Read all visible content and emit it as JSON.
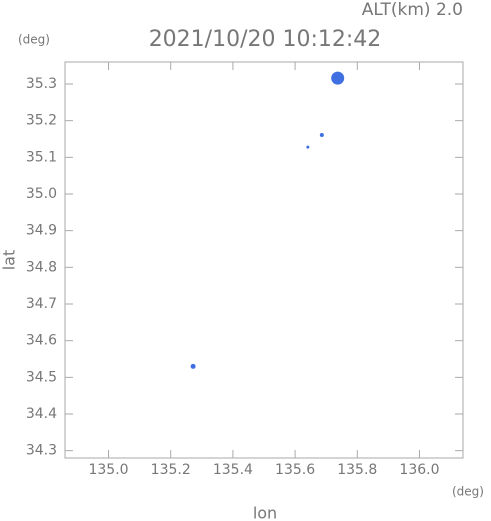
{
  "chart_data": {
    "type": "scatter",
    "title": "2021/10/20 10:12:42",
    "subtitle": "ALT(km) 2.0",
    "y_unit": "(deg)",
    "x_unit": "(deg)",
    "x_label": "lon",
    "y_label": "lat",
    "xlim": [
      134.86,
      136.14
    ],
    "ylim": [
      34.28,
      35.36
    ],
    "xticks": [
      {
        "value": 135,
        "label": "135.0"
      },
      135.2,
      135.4,
      135.6,
      135.8,
      {
        "value": 136,
        "label": "136.0"
      }
    ],
    "yticks": [
      34.3,
      34.4,
      34.5,
      34.6,
      34.7,
      34.8,
      34.9,
      {
        "value": 35,
        "label": "35.0"
      },
      35.1,
      35.2,
      35.3
    ],
    "series": [
      {
        "color": "#3f6fe0",
        "x": [
          135.737,
          135.686,
          135.641,
          135.272
        ],
        "values": [
          35.316,
          35.161,
          35.128,
          34.53
        ],
        "sizes": [
          12,
          3,
          2,
          4
        ]
      }
    ]
  }
}
